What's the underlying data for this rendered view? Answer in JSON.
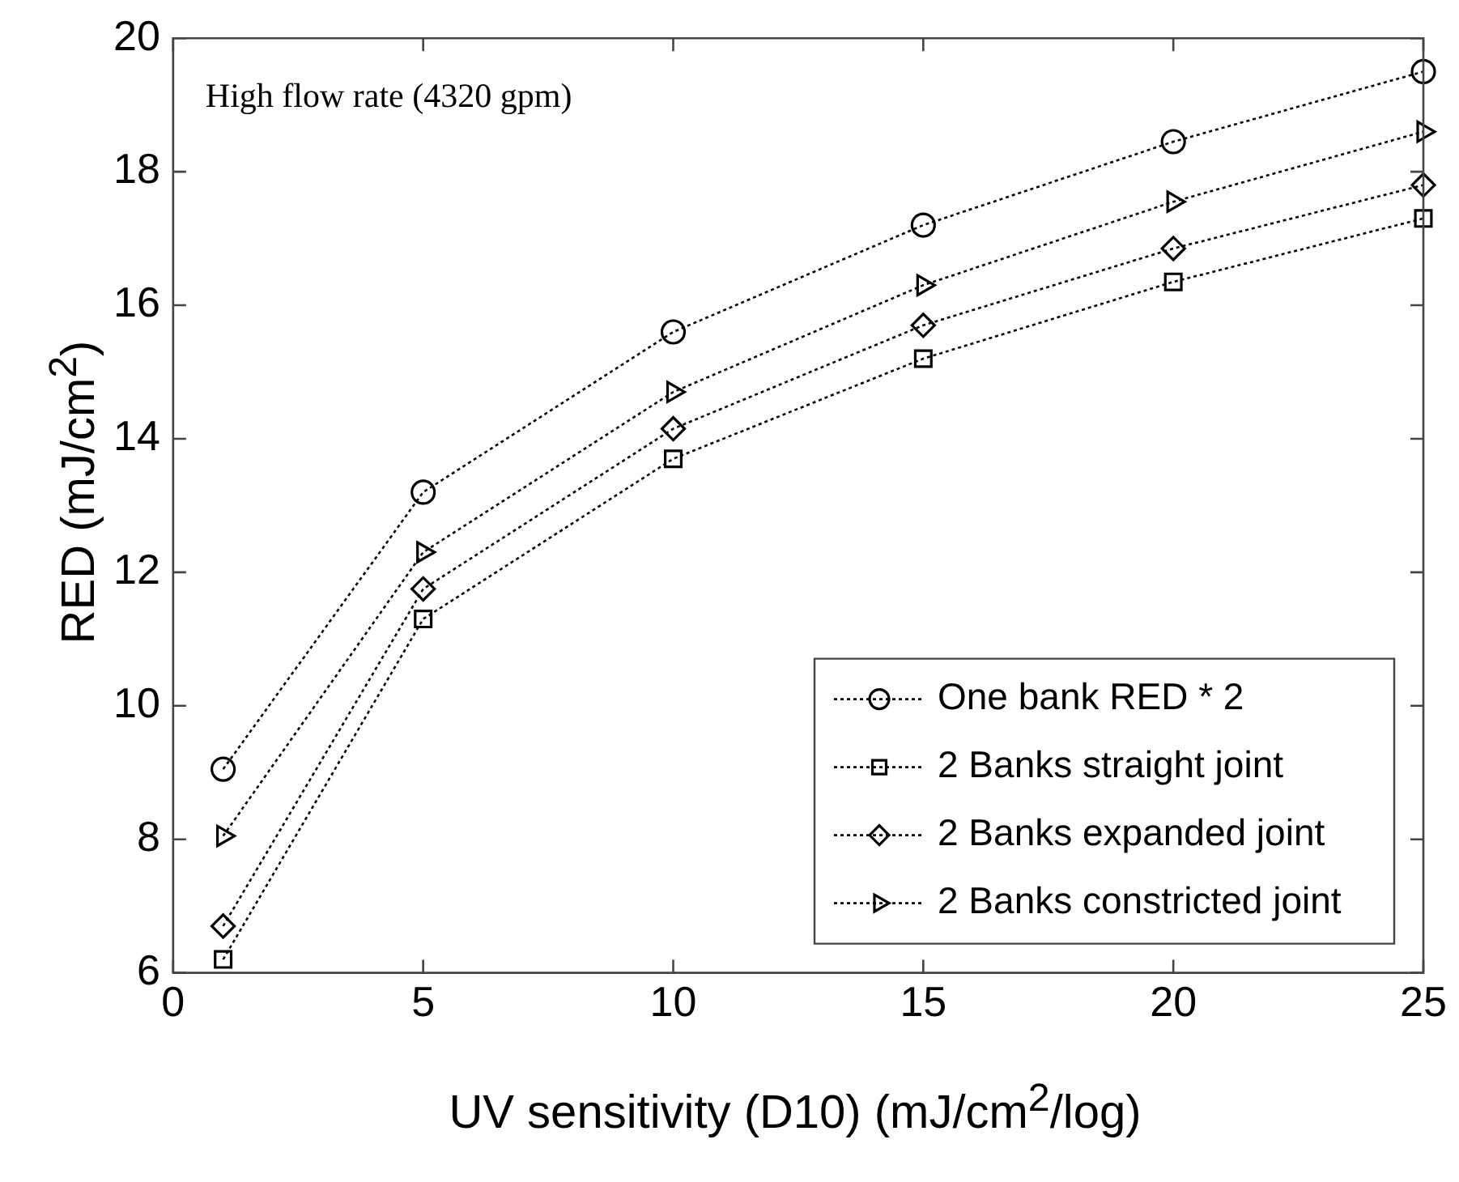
{
  "chart_data": {
    "type": "line",
    "annotations": [
      "High flow rate (4320 gpm)"
    ],
    "xlabel": "UV sensitivity (D10) (mJ/cm$^{2}$/log)",
    "ylabel": "RED (mJ/cm$^{2}$)",
    "x": [
      1,
      5,
      10,
      15,
      20,
      25
    ],
    "xlim": [
      0,
      25
    ],
    "xticks": [
      0,
      5,
      10,
      15,
      20,
      25
    ],
    "ylim": [
      6,
      20
    ],
    "yticks": [
      6,
      8,
      10,
      12,
      14,
      16,
      18,
      20
    ],
    "legend": "bottom right",
    "line_style": "dotted",
    "series": [
      {
        "name": "One bank RED * 2",
        "color": "#000000",
        "marker": "circle",
        "values": [
          9.05,
          13.2,
          15.6,
          17.2,
          18.45,
          19.5
        ]
      },
      {
        "name": "2 Banks straight joint",
        "color": "#000000",
        "marker": "square",
        "values": [
          6.2,
          11.3,
          13.7,
          15.2,
          16.35,
          17.3
        ]
      },
      {
        "name": "2 Banks expanded joint",
        "color": "#000000",
        "marker": "diamond",
        "values": [
          6.7,
          11.75,
          14.15,
          15.7,
          16.85,
          17.8
        ]
      },
      {
        "name": "2 Banks constricted joint",
        "color": "#000000",
        "marker": "triangle",
        "values": [
          8.05,
          12.3,
          14.7,
          16.3,
          17.55,
          18.6
        ]
      }
    ]
  }
}
